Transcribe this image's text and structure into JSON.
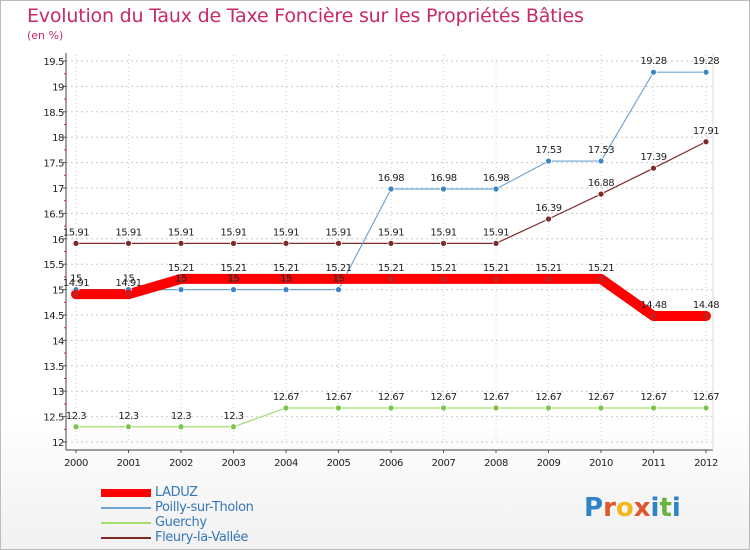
{
  "title": "Evolution du Taux de Taxe Foncière sur les Propriétés Bâties",
  "unit_label": "(en %)",
  "logo": {
    "text": "Proxiti",
    "letters": [
      {
        "ch": "P",
        "color": "#2e84c6"
      },
      {
        "ch": "r",
        "color": "#e0572c"
      },
      {
        "ch": "o",
        "color": "#f2b81e"
      },
      {
        "ch": "x",
        "color": "#e0572c"
      },
      {
        "ch": "i",
        "color": "#2e84c6"
      },
      {
        "ch": "t",
        "color": "#6ab43e"
      },
      {
        "ch": "i",
        "color": "#2e84c6"
      }
    ]
  },
  "chart_data": {
    "type": "line",
    "title": "Evolution du Taux de Taxe Foncière sur les Propriétés Bâties",
    "ylabel": "(en %)",
    "xlabel": "",
    "categories": [
      "2000",
      "2001",
      "2002",
      "2003",
      "2004",
      "2005",
      "2006",
      "2007",
      "2008",
      "2009",
      "2010",
      "2011",
      "2012"
    ],
    "ylim": [
      12,
      19.5
    ],
    "yticks": [
      "12",
      "12.5",
      "13",
      "13.5",
      "14",
      "14.5",
      "15",
      "15.5",
      "16",
      "16.5",
      "17",
      "17.5",
      "18",
      "18.5",
      "19",
      "19.5"
    ],
    "legend_position": "bottom-left",
    "series": [
      {
        "name": "Fleury-la-Vallée",
        "color": "#7d2a2a",
        "marker": "#7d2a2a",
        "width": 1.2,
        "values": [
          15.91,
          15.91,
          15.91,
          15.91,
          15.91,
          15.91,
          15.91,
          15.91,
          15.91,
          16.39,
          16.88,
          17.39,
          17.91
        ],
        "labels": [
          "15.91",
          "15.91",
          "15.91",
          "15.91",
          "15.91",
          "15.91",
          "15.91",
          "15.91",
          "15.91",
          "16.39",
          "16.88",
          "17.39",
          "17.91"
        ]
      },
      {
        "name": "Poilly-sur-Tholon",
        "color": "#6fa6d6",
        "marker": "#3d86c6",
        "width": 1.2,
        "values": [
          15,
          15,
          15,
          15,
          15,
          15,
          16.98,
          16.98,
          16.98,
          17.53,
          17.53,
          19.28,
          19.28
        ],
        "labels": [
          "15",
          "15",
          "15",
          "15",
          "15",
          "15",
          "16.98",
          "16.98",
          "16.98",
          "17.53",
          "17.53",
          "19.28",
          "19.28"
        ]
      },
      {
        "name": "Guerchy",
        "color": "#a5dc6e",
        "marker": "#7cc44a",
        "width": 1.2,
        "values": [
          12.3,
          12.3,
          12.3,
          12.3,
          12.67,
          12.67,
          12.67,
          12.67,
          12.67,
          12.67,
          12.67,
          12.67,
          12.67
        ],
        "labels": [
          "12.3",
          "12.3",
          "12.3",
          "12.3",
          "12.67",
          "12.67",
          "12.67",
          "12.67",
          "12.67",
          "12.67",
          "12.67",
          "12.67",
          "12.67"
        ]
      },
      {
        "name": "LADUZ",
        "color": "#ff0000",
        "marker": "#cc1b1b",
        "width": 10,
        "values": [
          14.91,
          14.91,
          15.21,
          15.21,
          15.21,
          15.21,
          15.21,
          15.21,
          15.21,
          15.21,
          15.21,
          14.48,
          14.48
        ],
        "labels": [
          "14.91",
          "14.91",
          "15.21",
          "15.21",
          "15.21",
          "15.21",
          "15.21",
          "15.21",
          "15.21",
          "15.21",
          "15.21",
          "14.48",
          "14.48"
        ]
      }
    ],
    "legend": [
      "LADUZ",
      "Poilly-sur-Tholon",
      "Guerchy",
      "Fleury-la-Vallée"
    ]
  }
}
